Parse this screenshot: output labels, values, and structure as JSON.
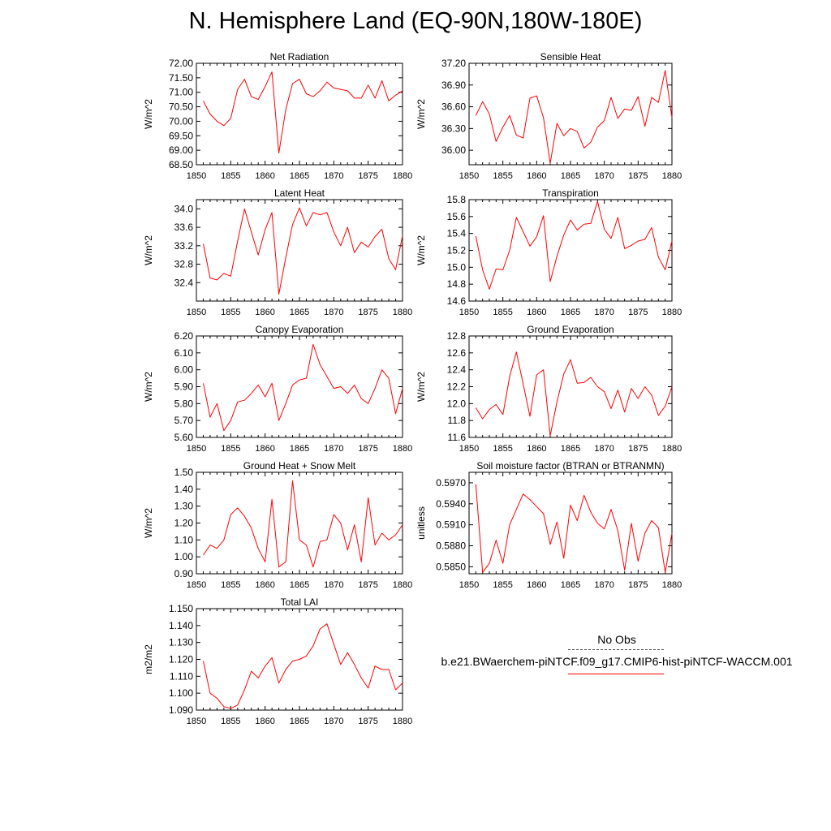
{
  "title": "N. Hemisphere Land (EQ-90N,180W-180E)",
  "legend": {
    "obs_label": "No Obs",
    "case_label": "b.e21.BWaerchem-piNTCF.f09_g17.CMIP6-hist-piNTCF-WACCM.001",
    "case_color": "#ff0000",
    "obs_color": "#555555"
  },
  "chart_data": [
    {
      "type": "line",
      "title": "Net Radiation",
      "ylabel": "W/m^2",
      "xlim": [
        1850,
        1880
      ],
      "ylim": [
        68.5,
        72.0
      ],
      "yticks": [
        "72.00",
        "71.50",
        "71.00",
        "70.50",
        "70.00",
        "69.50",
        "69.00",
        "68.50"
      ],
      "ytick_values": [
        72.0,
        71.5,
        71.0,
        70.5,
        70.0,
        69.5,
        69.0,
        68.5
      ],
      "xticks": [
        "1850",
        "1855",
        "1860",
        "1865",
        "1870",
        "1875",
        "1880"
      ],
      "xtick_values": [
        1850,
        1855,
        1860,
        1865,
        1870,
        1875,
        1880
      ],
      "series": [
        {
          "color": "#ff0000",
          "x": [
            1851,
            1852,
            1853,
            1854,
            1855,
            1856,
            1857,
            1858,
            1859,
            1860,
            1861,
            1862,
            1863,
            1864,
            1865,
            1866,
            1867,
            1868,
            1869,
            1870,
            1871,
            1872,
            1873,
            1874,
            1875,
            1876,
            1877,
            1878,
            1879,
            1880
          ],
          "y": [
            70.7,
            70.25,
            70.0,
            69.85,
            70.1,
            71.1,
            71.45,
            70.85,
            70.75,
            71.2,
            71.7,
            68.9,
            70.4,
            71.3,
            71.45,
            70.95,
            70.85,
            71.05,
            71.35,
            71.15,
            71.1,
            71.05,
            70.8,
            70.8,
            71.25,
            70.8,
            71.4,
            70.7,
            70.9,
            71.05
          ]
        }
      ]
    },
    {
      "type": "line",
      "title": "Sensible Heat",
      "ylabel": "W/m^2",
      "xlim": [
        1850,
        1880
      ],
      "ylim": [
        35.8,
        37.2
      ],
      "yticks": [
        "37.20",
        "36.90",
        "36.60",
        "36.30",
        "36.00"
      ],
      "ytick_values": [
        37.2,
        36.9,
        36.6,
        36.3,
        36.0
      ],
      "xticks": [
        "1850",
        "1855",
        "1860",
        "1865",
        "1870",
        "1875",
        "1880"
      ],
      "xtick_values": [
        1850,
        1855,
        1860,
        1865,
        1870,
        1875,
        1880
      ],
      "series": [
        {
          "color": "#ff0000",
          "x": [
            1851,
            1852,
            1853,
            1854,
            1855,
            1856,
            1857,
            1858,
            1859,
            1860,
            1861,
            1862,
            1863,
            1864,
            1865,
            1866,
            1867,
            1868,
            1869,
            1870,
            1871,
            1872,
            1873,
            1874,
            1875,
            1876,
            1877,
            1878,
            1879,
            1880
          ],
          "y": [
            36.48,
            36.67,
            36.5,
            36.12,
            36.32,
            36.48,
            36.21,
            36.17,
            36.72,
            36.75,
            36.45,
            35.82,
            36.37,
            36.2,
            36.3,
            36.26,
            36.03,
            36.11,
            36.32,
            36.41,
            36.73,
            36.44,
            36.57,
            36.55,
            36.74,
            36.33,
            36.73,
            36.66,
            37.1,
            36.45
          ]
        }
      ]
    },
    {
      "type": "line",
      "title": "Latent Heat",
      "ylabel": "W/m^2",
      "xlim": [
        1850,
        1880
      ],
      "ylim": [
        32.0,
        34.2
      ],
      "yticks": [
        "34.0",
        "33.6",
        "33.2",
        "32.8",
        "32.4"
      ],
      "ytick_values": [
        34.0,
        33.6,
        33.2,
        32.8,
        32.4
      ],
      "xticks": [
        "1850",
        "1855",
        "1860",
        "1865",
        "1870",
        "1875",
        "1880"
      ],
      "xtick_values": [
        1850,
        1855,
        1860,
        1865,
        1870,
        1875,
        1880
      ],
      "series": [
        {
          "color": "#ff0000",
          "x": [
            1851,
            1852,
            1853,
            1854,
            1855,
            1856,
            1857,
            1858,
            1859,
            1860,
            1861,
            1862,
            1863,
            1864,
            1865,
            1866,
            1867,
            1868,
            1869,
            1870,
            1871,
            1872,
            1873,
            1874,
            1875,
            1876,
            1877,
            1878,
            1879,
            1880
          ],
          "y": [
            33.24,
            32.5,
            32.46,
            32.6,
            32.54,
            33.3,
            34.0,
            33.5,
            33.0,
            33.55,
            33.92,
            32.15,
            32.94,
            33.66,
            34.02,
            33.63,
            33.92,
            33.87,
            33.92,
            33.5,
            33.2,
            33.6,
            33.05,
            33.28,
            33.17,
            33.4,
            33.56,
            32.92,
            32.68,
            33.42
          ]
        }
      ]
    },
    {
      "type": "line",
      "title": "Transpiration",
      "ylabel": "W/m^2",
      "xlim": [
        1850,
        1880
      ],
      "ylim": [
        14.6,
        15.8
      ],
      "yticks": [
        "15.8",
        "15.6",
        "15.4",
        "15.2",
        "15.0",
        "14.8",
        "14.6"
      ],
      "ytick_values": [
        15.8,
        15.6,
        15.4,
        15.2,
        15.0,
        14.8,
        14.6
      ],
      "xticks": [
        "1850",
        "1855",
        "1860",
        "1865",
        "1870",
        "1875",
        "1880"
      ],
      "xtick_values": [
        1850,
        1855,
        1860,
        1865,
        1870,
        1875,
        1880
      ],
      "series": [
        {
          "color": "#ff0000",
          "x": [
            1851,
            1852,
            1853,
            1854,
            1855,
            1856,
            1857,
            1858,
            1859,
            1860,
            1861,
            1862,
            1863,
            1864,
            1865,
            1866,
            1867,
            1868,
            1869,
            1870,
            1871,
            1872,
            1873,
            1874,
            1875,
            1876,
            1877,
            1878,
            1879,
            1880
          ],
          "y": [
            15.37,
            14.97,
            14.74,
            14.98,
            14.97,
            15.2,
            15.59,
            15.42,
            15.25,
            15.36,
            15.61,
            14.83,
            15.13,
            15.38,
            15.56,
            15.44,
            15.51,
            15.52,
            15.78,
            15.45,
            15.34,
            15.59,
            15.22,
            15.26,
            15.31,
            15.33,
            15.47,
            15.12,
            14.97,
            15.31
          ]
        }
      ]
    },
    {
      "type": "line",
      "title": "Canopy Evaporation",
      "ylabel": "W/m^2",
      "xlim": [
        1850,
        1880
      ],
      "ylim": [
        5.6,
        6.2
      ],
      "yticks": [
        "6.20",
        "6.10",
        "6.00",
        "5.90",
        "5.80",
        "5.70",
        "5.60"
      ],
      "ytick_values": [
        6.2,
        6.1,
        6.0,
        5.9,
        5.8,
        5.7,
        5.6
      ],
      "xticks": [
        "1850",
        "1855",
        "1860",
        "1865",
        "1870",
        "1875",
        "1880"
      ],
      "xtick_values": [
        1850,
        1855,
        1860,
        1865,
        1870,
        1875,
        1880
      ],
      "series": [
        {
          "color": "#ff0000",
          "x": [
            1851,
            1852,
            1853,
            1854,
            1855,
            1856,
            1857,
            1858,
            1859,
            1860,
            1861,
            1862,
            1863,
            1864,
            1865,
            1866,
            1867,
            1868,
            1869,
            1870,
            1871,
            1872,
            1873,
            1874,
            1875,
            1876,
            1877,
            1878,
            1879,
            1880
          ],
          "y": [
            5.92,
            5.72,
            5.8,
            5.64,
            5.7,
            5.81,
            5.82,
            5.86,
            5.91,
            5.84,
            5.92,
            5.7,
            5.8,
            5.91,
            5.94,
            5.95,
            6.15,
            6.03,
            5.96,
            5.89,
            5.9,
            5.86,
            5.91,
            5.83,
            5.8,
            5.89,
            6.0,
            5.95,
            5.74,
            5.89
          ]
        }
      ]
    },
    {
      "type": "line",
      "title": "Ground Evaporation",
      "ylabel": "W/m^2",
      "xlim": [
        1850,
        1880
      ],
      "ylim": [
        11.6,
        12.8
      ],
      "yticks": [
        "12.8",
        "12.6",
        "12.4",
        "12.2",
        "12.0",
        "11.8",
        "11.6"
      ],
      "ytick_values": [
        12.8,
        12.6,
        12.4,
        12.2,
        12.0,
        11.8,
        11.6
      ],
      "xticks": [
        "1850",
        "1855",
        "1860",
        "1865",
        "1870",
        "1875",
        "1880"
      ],
      "xtick_values": [
        1850,
        1855,
        1860,
        1865,
        1870,
        1875,
        1880
      ],
      "series": [
        {
          "color": "#ff0000",
          "x": [
            1851,
            1852,
            1853,
            1854,
            1855,
            1856,
            1857,
            1858,
            1859,
            1860,
            1861,
            1862,
            1863,
            1864,
            1865,
            1866,
            1867,
            1868,
            1869,
            1870,
            1871,
            1872,
            1873,
            1874,
            1875,
            1876,
            1877,
            1878,
            1879,
            1880
          ],
          "y": [
            11.95,
            11.82,
            11.93,
            11.99,
            11.87,
            12.32,
            12.61,
            12.23,
            11.85,
            12.34,
            12.4,
            11.62,
            12.02,
            12.35,
            12.52,
            12.24,
            12.25,
            12.31,
            12.2,
            12.14,
            11.94,
            12.16,
            11.9,
            12.18,
            12.06,
            12.2,
            12.1,
            11.86,
            11.97,
            12.2
          ]
        }
      ]
    },
    {
      "type": "line",
      "title": "Ground Heat + Snow Melt",
      "ylabel": "W/m^2",
      "xlim": [
        1850,
        1880
      ],
      "ylim": [
        0.9,
        1.5
      ],
      "yticks": [
        "1.50",
        "1.40",
        "1.30",
        "1.20",
        "1.10",
        "1.00",
        "0.90"
      ],
      "ytick_values": [
        1.5,
        1.4,
        1.3,
        1.2,
        1.1,
        1.0,
        0.9
      ],
      "xticks": [
        "1850",
        "1855",
        "1860",
        "1865",
        "1870",
        "1875",
        "1880"
      ],
      "xtick_values": [
        1850,
        1855,
        1860,
        1865,
        1870,
        1875,
        1880
      ],
      "series": [
        {
          "color": "#ff0000",
          "x": [
            1851,
            1852,
            1853,
            1854,
            1855,
            1856,
            1857,
            1858,
            1859,
            1860,
            1861,
            1862,
            1863,
            1864,
            1865,
            1866,
            1867,
            1868,
            1869,
            1870,
            1871,
            1872,
            1873,
            1874,
            1875,
            1876,
            1877,
            1878,
            1879,
            1880
          ],
          "y": [
            1.01,
            1.07,
            1.05,
            1.1,
            1.25,
            1.29,
            1.24,
            1.17,
            1.05,
            0.97,
            1.34,
            0.94,
            0.97,
            1.45,
            1.1,
            1.07,
            0.94,
            1.09,
            1.1,
            1.25,
            1.2,
            1.04,
            1.19,
            0.97,
            1.35,
            1.07,
            1.14,
            1.1,
            1.13,
            1.19
          ]
        }
      ]
    },
    {
      "type": "line",
      "title": "Soil moisture factor (BTRAN or BTRANMN)",
      "ylabel": "unitless",
      "xlim": [
        1850,
        1880
      ],
      "ylim": [
        0.584,
        0.5985
      ],
      "yticks": [
        "0.5970",
        "0.5940",
        "0.5910",
        "0.5880",
        "0.5850"
      ],
      "ytick_values": [
        0.597,
        0.594,
        0.591,
        0.588,
        0.585
      ],
      "xticks": [
        "1850",
        "1855",
        "1860",
        "1865",
        "1870",
        "1875",
        "1880"
      ],
      "xtick_values": [
        1850,
        1855,
        1860,
        1865,
        1870,
        1875,
        1880
      ],
      "series": [
        {
          "color": "#ff0000",
          "x": [
            1851,
            1852,
            1853,
            1854,
            1855,
            1856,
            1857,
            1858,
            1859,
            1860,
            1861,
            1862,
            1863,
            1864,
            1865,
            1866,
            1867,
            1868,
            1869,
            1870,
            1871,
            1872,
            1873,
            1874,
            1875,
            1876,
            1877,
            1878,
            1879,
            1880
          ],
          "y": [
            0.5968,
            0.5842,
            0.5855,
            0.5888,
            0.5855,
            0.591,
            0.5932,
            0.5954,
            0.5946,
            0.5936,
            0.5926,
            0.5882,
            0.5914,
            0.5862,
            0.5938,
            0.5916,
            0.5952,
            0.5928,
            0.5912,
            0.5904,
            0.5932,
            0.5902,
            0.5845,
            0.5912,
            0.5858,
            0.5898,
            0.5916,
            0.5906,
            0.5842,
            0.5898
          ]
        }
      ]
    },
    {
      "type": "line",
      "title": "Total LAI",
      "ylabel": "m2/m2",
      "xlim": [
        1850,
        1880
      ],
      "ylim": [
        1.09,
        1.15
      ],
      "yticks": [
        "1.150",
        "1.140",
        "1.130",
        "1.120",
        "1.110",
        "1.100",
        "1.090"
      ],
      "ytick_values": [
        1.15,
        1.14,
        1.13,
        1.12,
        1.11,
        1.1,
        1.09
      ],
      "xticks": [
        "1850",
        "1855",
        "1860",
        "1865",
        "1870",
        "1875",
        "1880"
      ],
      "xtick_values": [
        1850,
        1855,
        1860,
        1865,
        1870,
        1875,
        1880
      ],
      "series": [
        {
          "color": "#ff0000",
          "x": [
            1851,
            1852,
            1853,
            1854,
            1855,
            1856,
            1857,
            1858,
            1859,
            1860,
            1861,
            1862,
            1863,
            1864,
            1865,
            1866,
            1867,
            1868,
            1869,
            1870,
            1871,
            1872,
            1873,
            1874,
            1875,
            1876,
            1877,
            1878,
            1879,
            1880
          ],
          "y": [
            1.119,
            1.1,
            1.097,
            1.092,
            1.091,
            1.093,
            1.102,
            1.113,
            1.109,
            1.116,
            1.121,
            1.106,
            1.114,
            1.119,
            1.12,
            1.122,
            1.128,
            1.138,
            1.141,
            1.129,
            1.117,
            1.124,
            1.117,
            1.109,
            1.103,
            1.116,
            1.114,
            1.114,
            1.102,
            1.106
          ]
        }
      ]
    }
  ]
}
